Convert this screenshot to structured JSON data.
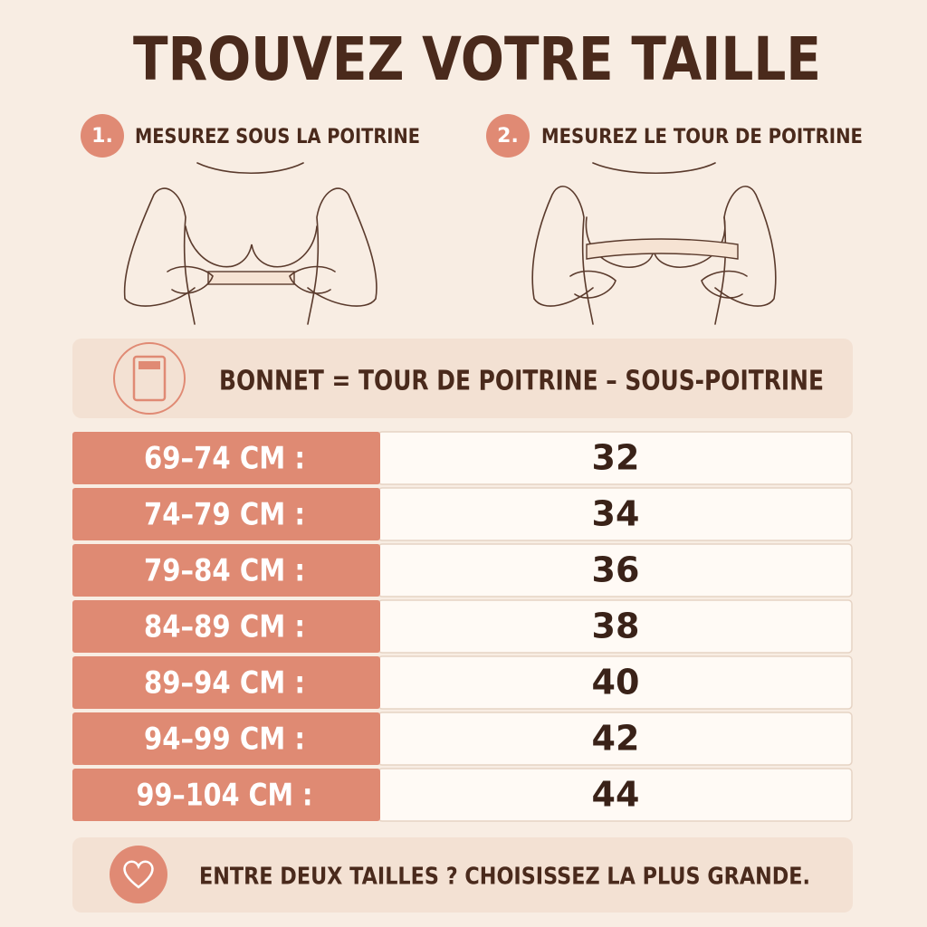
{
  "header": {
    "title": "TROUVEZ VOTRE TAILLE"
  },
  "steps": [
    {
      "number": "1.",
      "label": "MESUREZ SOUS LA POITRINE"
    },
    {
      "number": "2.",
      "label": "MESUREZ LE TOUR DE POITRINE"
    }
  ],
  "formula": "BONNET = TOUR DE POITRINE – SOUS-POITRINE",
  "table": {
    "rows": [
      [
        "69–74 CM :",
        "32"
      ],
      [
        "74–79 CM :",
        "34"
      ],
      [
        "79–84 CM :",
        "36"
      ],
      [
        "84–89 CM :",
        "38"
      ],
      [
        "89–94 CM :",
        "40"
      ],
      [
        "94–99 CM :",
        "42"
      ],
      [
        "99–104 CM :",
        "44"
      ]
    ]
  },
  "note": "ENTRE DEUX TAILLES ? CHOISISSEZ LA PLUS GRANDE."
}
